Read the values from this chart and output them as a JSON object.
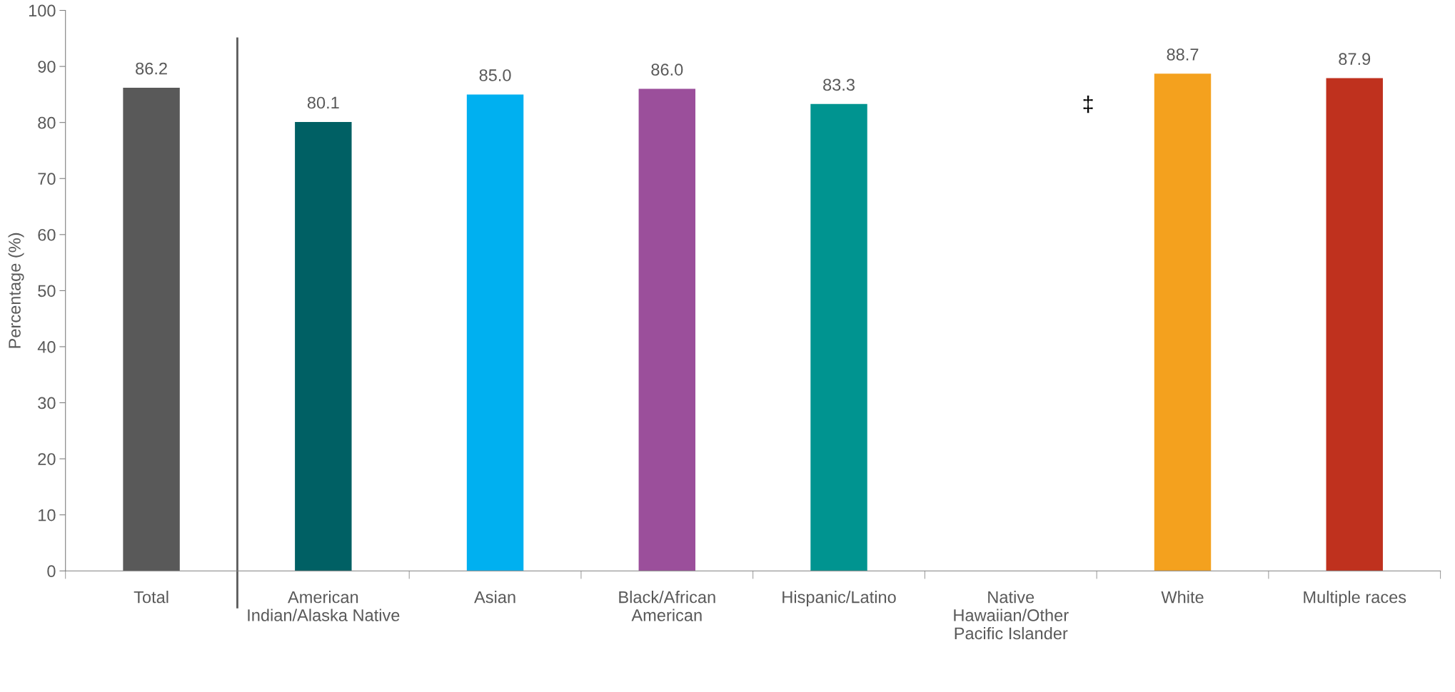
{
  "chart_data": {
    "type": "bar",
    "ylabel": "Percentage (%)",
    "categories": [
      "Total",
      "American\nIndian/Alaska Native",
      "Asian",
      "Black/African\nAmerican",
      "Hispanic/Latino",
      "Native\nHawaiian/Other\nPacific Islander",
      "White",
      "Multiple races"
    ],
    "values": [
      86.2,
      80.1,
      85.0,
      86.0,
      83.3,
      null,
      88.7,
      87.9
    ],
    "value_labels": [
      "86.2",
      "80.1",
      "85.0",
      "86.0",
      "83.3",
      null,
      "88.7",
      "87.9"
    ],
    "colors": [
      "#595959",
      "#006064",
      "#00b0f0",
      "#9b4f9b",
      "#009490",
      "#888888",
      "#f4a11e",
      "#bf311e"
    ],
    "ylim": [
      0,
      100
    ],
    "yticks": [
      0,
      10,
      20,
      30,
      40,
      50,
      60,
      70,
      80,
      90,
      100
    ],
    "annotations": [
      "‡"
    ],
    "grid": false,
    "legend": false
  }
}
